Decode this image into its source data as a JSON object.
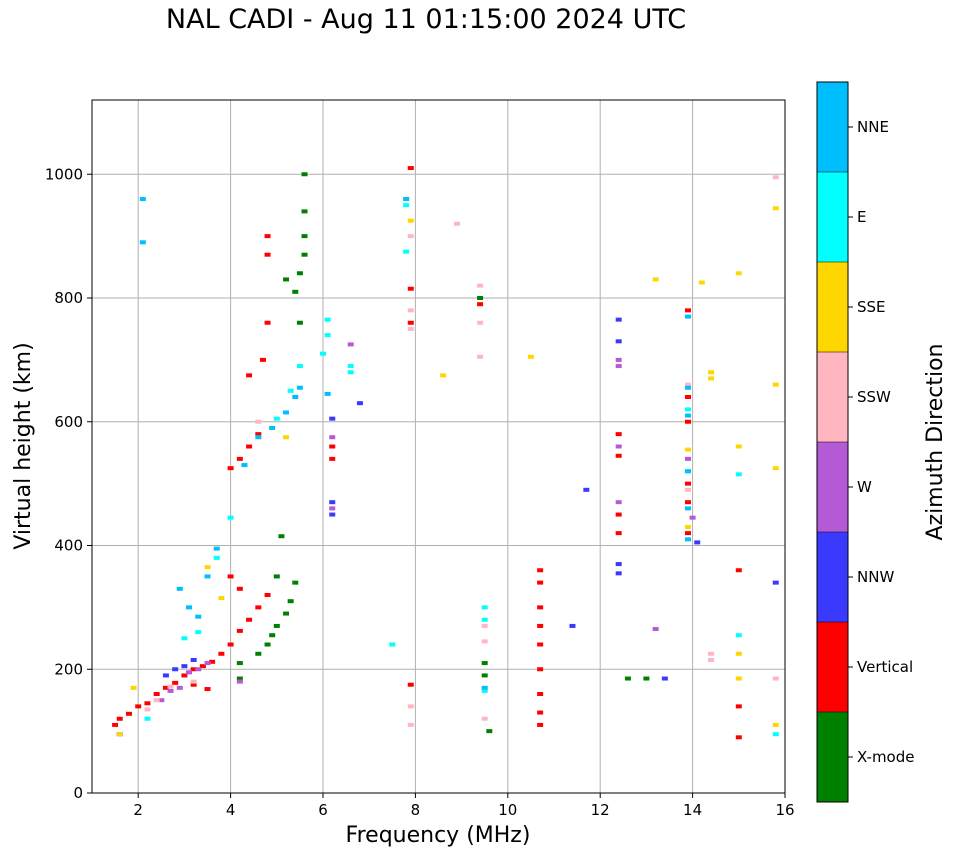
{
  "chart_data": {
    "type": "scatter",
    "title": "NAL CADI - Aug 11 01:15:00 2024 UTC",
    "xlabel": "Frequency (MHz)",
    "ylabel": "Virtual height (km)",
    "xlim": [
      1,
      16
    ],
    "ylim": [
      0,
      1120
    ],
    "x_ticks": [
      2,
      4,
      6,
      8,
      10,
      12,
      14,
      16
    ],
    "y_ticks": [
      0,
      200,
      400,
      600,
      800,
      1000
    ],
    "grid": true,
    "colorbar": {
      "label": "Azimuth Direction",
      "categories": [
        {
          "name": "X-mode",
          "color": "#008000"
        },
        {
          "name": "Vertical",
          "color": "#ff0000"
        },
        {
          "name": "NNW",
          "color": "#3a3aff"
        },
        {
          "name": "W",
          "color": "#b45ad6"
        },
        {
          "name": "SSW",
          "color": "#ffb6c1"
        },
        {
          "name": "SSE",
          "color": "#ffd700"
        },
        {
          "name": "E",
          "color": "#00ffff"
        },
        {
          "name": "NNE",
          "color": "#00bfff"
        }
      ]
    },
    "series": [
      {
        "name": "Vertical",
        "color": "#ff0000",
        "points": [
          [
            1.5,
            110
          ],
          [
            1.6,
            120
          ],
          [
            1.8,
            128
          ],
          [
            2.0,
            140
          ],
          [
            2.2,
            145
          ],
          [
            2.4,
            160
          ],
          [
            2.6,
            170
          ],
          [
            2.8,
            178
          ],
          [
            3.0,
            190
          ],
          [
            3.2,
            200
          ],
          [
            3.4,
            205
          ],
          [
            3.6,
            212
          ],
          [
            3.8,
            225
          ],
          [
            4.0,
            240
          ],
          [
            4.2,
            262
          ],
          [
            4.4,
            280
          ],
          [
            4.6,
            300
          ],
          [
            4.8,
            320
          ],
          [
            4.0,
            350
          ],
          [
            4.2,
            330
          ],
          [
            3.2,
            175
          ],
          [
            3.5,
            168
          ],
          [
            4.0,
            525
          ],
          [
            4.2,
            540
          ],
          [
            4.4,
            560
          ],
          [
            4.6,
            580
          ],
          [
            4.7,
            700
          ],
          [
            4.8,
            760
          ],
          [
            4.8,
            900
          ],
          [
            4.8,
            870
          ],
          [
            4.4,
            675
          ],
          [
            6.2,
            540
          ],
          [
            6.2,
            560
          ],
          [
            7.9,
            1010
          ],
          [
            7.9,
            815
          ],
          [
            7.9,
            760
          ],
          [
            7.9,
            175
          ],
          [
            9.4,
            790
          ],
          [
            10.7,
            360
          ],
          [
            10.7,
            340
          ],
          [
            10.7,
            300
          ],
          [
            10.7,
            270
          ],
          [
            10.7,
            240
          ],
          [
            10.7,
            200
          ],
          [
            10.7,
            160
          ],
          [
            10.7,
            130
          ],
          [
            10.7,
            110
          ],
          [
            12.4,
            580
          ],
          [
            12.4,
            545
          ],
          [
            12.4,
            450
          ],
          [
            12.4,
            420
          ],
          [
            13.9,
            780
          ],
          [
            13.9,
            640
          ],
          [
            13.9,
            600
          ],
          [
            13.9,
            500
          ],
          [
            13.9,
            470
          ],
          [
            13.9,
            420
          ],
          [
            15.0,
            360
          ],
          [
            15.0,
            140
          ],
          [
            15.0,
            90
          ]
        ]
      },
      {
        "name": "X-mode",
        "color": "#008000",
        "points": [
          [
            4.2,
            185
          ],
          [
            4.2,
            210
          ],
          [
            4.6,
            225
          ],
          [
            4.8,
            240
          ],
          [
            4.9,
            255
          ],
          [
            5.0,
            270
          ],
          [
            5.2,
            290
          ],
          [
            5.3,
            310
          ],
          [
            5.4,
            340
          ],
          [
            5.0,
            350
          ],
          [
            5.1,
            415
          ],
          [
            5.2,
            830
          ],
          [
            5.4,
            810
          ],
          [
            5.5,
            840
          ],
          [
            5.6,
            870
          ],
          [
            5.6,
            900
          ],
          [
            5.6,
            940
          ],
          [
            5.6,
            1000
          ],
          [
            5.5,
            760
          ],
          [
            9.4,
            800
          ],
          [
            9.5,
            210
          ],
          [
            9.5,
            190
          ],
          [
            9.6,
            100
          ],
          [
            12.6,
            185
          ],
          [
            13.0,
            185
          ]
        ]
      },
      {
        "name": "NNW",
        "color": "#3a3aff",
        "points": [
          [
            1.6,
            95
          ],
          [
            2.6,
            190
          ],
          [
            2.8,
            200
          ],
          [
            3.0,
            205
          ],
          [
            3.2,
            215
          ],
          [
            6.2,
            605
          ],
          [
            6.2,
            450
          ],
          [
            6.2,
            470
          ],
          [
            6.8,
            630
          ],
          [
            11.7,
            490
          ],
          [
            11.4,
            270
          ],
          [
            12.4,
            370
          ],
          [
            12.4,
            355
          ],
          [
            12.4,
            765
          ],
          [
            12.4,
            730
          ],
          [
            13.4,
            185
          ],
          [
            14.1,
            405
          ],
          [
            15.8,
            340
          ]
        ]
      },
      {
        "name": "W",
        "color": "#b45ad6",
        "points": [
          [
            2.5,
            150
          ],
          [
            2.7,
            165
          ],
          [
            2.9,
            170
          ],
          [
            3.1,
            195
          ],
          [
            3.3,
            200
          ],
          [
            3.5,
            210
          ],
          [
            4.2,
            180
          ],
          [
            6.2,
            575
          ],
          [
            6.2,
            460
          ],
          [
            6.6,
            725
          ],
          [
            12.4,
            700
          ],
          [
            12.4,
            690
          ],
          [
            12.4,
            470
          ],
          [
            12.4,
            560
          ],
          [
            13.2,
            265
          ],
          [
            13.9,
            540
          ],
          [
            14.0,
            445
          ]
        ]
      },
      {
        "name": "SSW",
        "color": "#ffb6c1",
        "points": [
          [
            2.2,
            135
          ],
          [
            2.4,
            150
          ],
          [
            2.7,
            172
          ],
          [
            3.2,
            180
          ],
          [
            4.6,
            600
          ],
          [
            7.8,
            960
          ],
          [
            7.9,
            900
          ],
          [
            7.9,
            780
          ],
          [
            7.9,
            750
          ],
          [
            7.9,
            140
          ],
          [
            7.9,
            110
          ],
          [
            8.9,
            920
          ],
          [
            9.4,
            820
          ],
          [
            9.4,
            760
          ],
          [
            9.4,
            705
          ],
          [
            9.5,
            270
          ],
          [
            9.5,
            245
          ],
          [
            9.5,
            120
          ],
          [
            13.9,
            660
          ],
          [
            13.9,
            490
          ],
          [
            14.4,
            225
          ],
          [
            14.4,
            215
          ],
          [
            15.8,
            995
          ],
          [
            15.8,
            185
          ]
        ]
      },
      {
        "name": "SSE",
        "color": "#ffd700",
        "points": [
          [
            1.6,
            95
          ],
          [
            1.9,
            170
          ],
          [
            3.5,
            365
          ],
          [
            3.8,
            315
          ],
          [
            5.2,
            575
          ],
          [
            7.9,
            925
          ],
          [
            8.6,
            675
          ],
          [
            10.5,
            705
          ],
          [
            13.2,
            830
          ],
          [
            13.9,
            555
          ],
          [
            13.9,
            430
          ],
          [
            14.2,
            825
          ],
          [
            14.4,
            680
          ],
          [
            14.4,
            670
          ],
          [
            15.0,
            840
          ],
          [
            15.0,
            560
          ],
          [
            15.0,
            225
          ],
          [
            15.0,
            185
          ],
          [
            15.8,
            945
          ],
          [
            15.8,
            660
          ],
          [
            15.8,
            525
          ],
          [
            15.8,
            110
          ]
        ]
      },
      {
        "name": "E",
        "color": "#00ffff",
        "points": [
          [
            2.2,
            120
          ],
          [
            3.0,
            250
          ],
          [
            3.3,
            260
          ],
          [
            3.7,
            380
          ],
          [
            4.0,
            445
          ],
          [
            5.0,
            605
          ],
          [
            5.3,
            650
          ],
          [
            5.5,
            690
          ],
          [
            6.0,
            710
          ],
          [
            6.1,
            765
          ],
          [
            6.1,
            740
          ],
          [
            6.6,
            690
          ],
          [
            6.6,
            680
          ],
          [
            7.5,
            240
          ],
          [
            7.8,
            875
          ],
          [
            7.8,
            950
          ],
          [
            9.5,
            300
          ],
          [
            9.5,
            280
          ],
          [
            9.5,
            165
          ],
          [
            13.9,
            620
          ],
          [
            13.9,
            520
          ],
          [
            15.0,
            515
          ],
          [
            15.0,
            255
          ],
          [
            15.8,
            95
          ]
        ]
      },
      {
        "name": "NNE",
        "color": "#00bfff",
        "points": [
          [
            2.1,
            960
          ],
          [
            2.1,
            890
          ],
          [
            2.9,
            330
          ],
          [
            3.1,
            300
          ],
          [
            3.3,
            285
          ],
          [
            3.5,
            350
          ],
          [
            3.7,
            395
          ],
          [
            4.3,
            530
          ],
          [
            4.6,
            575
          ],
          [
            4.9,
            590
          ],
          [
            5.2,
            615
          ],
          [
            5.4,
            640
          ],
          [
            5.5,
            655
          ],
          [
            6.1,
            645
          ],
          [
            7.8,
            960
          ],
          [
            9.5,
            170
          ],
          [
            13.9,
            655
          ],
          [
            13.9,
            610
          ],
          [
            13.9,
            520
          ],
          [
            13.9,
            460
          ],
          [
            13.9,
            410
          ],
          [
            13.9,
            770
          ]
        ]
      }
    ]
  }
}
